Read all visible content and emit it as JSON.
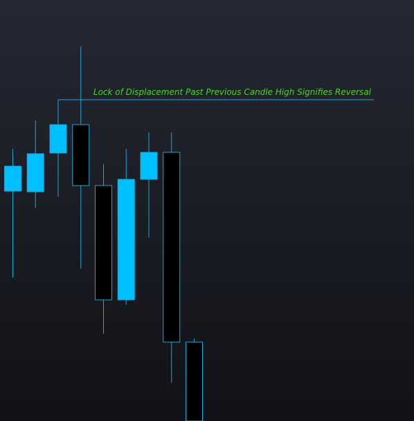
{
  "colors": {
    "bullish_fill": "#00bfff",
    "bearish_fill": "#000000",
    "candle_outline": "#1ea6d6",
    "wick": "#1ea6d6",
    "annotation_line": "#1ea6d6",
    "annotation_text": "#4fd22a",
    "background_top": "#252834",
    "background_bottom": "#111217"
  },
  "chart_data": {
    "type": "candlestick",
    "title": "",
    "xlabel": "",
    "ylabel": "",
    "grid": false,
    "ylim": [
      0,
      608
    ],
    "candles": [
      {
        "open": 332,
        "high": 393,
        "low": 207,
        "close": 368
      },
      {
        "open": 331,
        "high": 434,
        "low": 308,
        "close": 386
      },
      {
        "open": 387,
        "high": 464,
        "low": 324,
        "close": 428
      },
      {
        "open": 428,
        "high": 541,
        "low": 220,
        "close": 340
      },
      {
        "open": 340,
        "high": 371,
        "low": 126,
        "close": 175
      },
      {
        "open": 175,
        "high": 393,
        "low": 168,
        "close": 349
      },
      {
        "open": 349,
        "high": 417,
        "low": 265,
        "close": 388
      },
      {
        "open": 388,
        "high": 417,
        "low": 55,
        "close": 114
      },
      {
        "open": 114,
        "high": 119,
        "low": 0,
        "close": 0
      }
    ],
    "annotations": [
      {
        "text": "Lock of Displacement Past Previous Candle High Signifies Reversal",
        "level": 464
      }
    ]
  }
}
